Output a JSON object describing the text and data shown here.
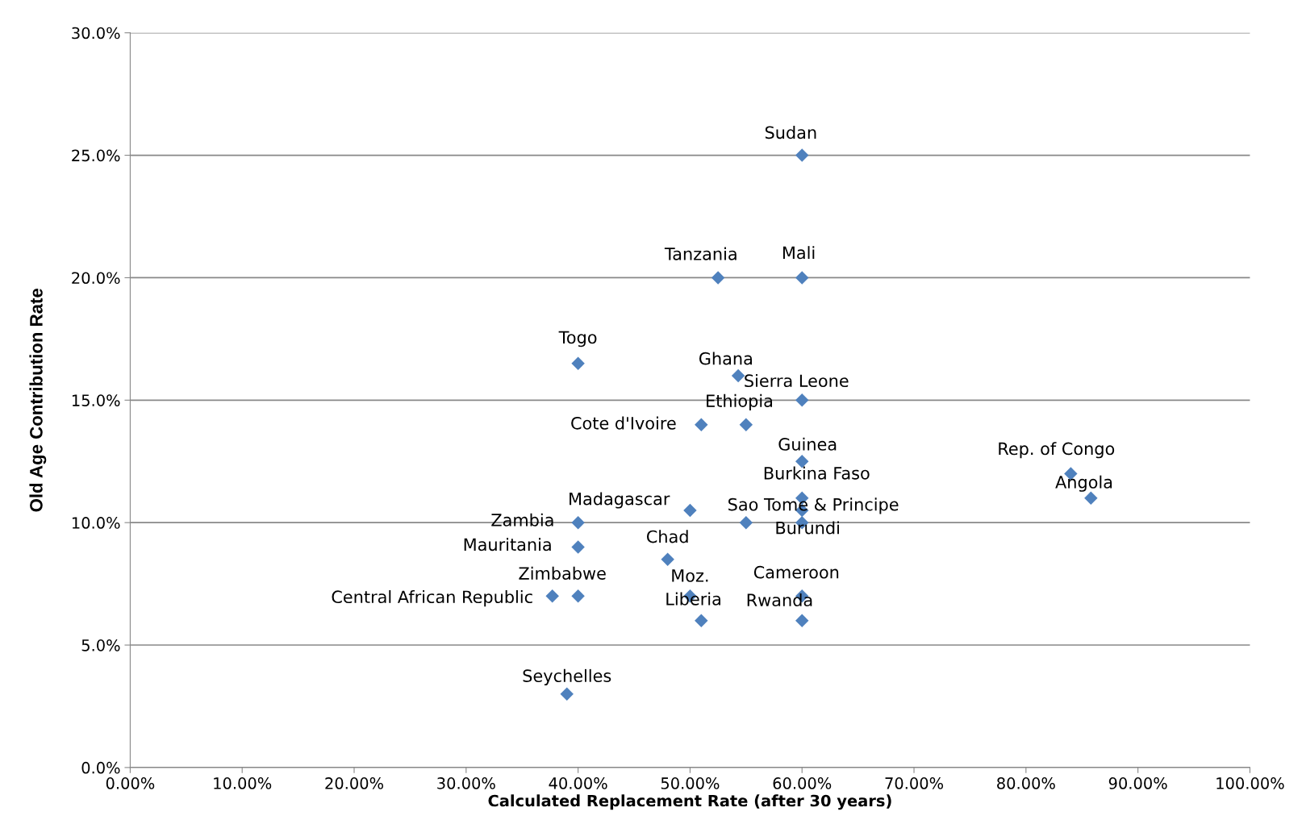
{
  "chart_data": {
    "type": "scatter",
    "xlabel": "Calculated Replacement Rate (after 30 years)",
    "ylabel": "Old Age Contribution Rate",
    "x": [
      60,
      52.5,
      60,
      40,
      54.3,
      60,
      51,
      55,
      60,
      84,
      85.8,
      60,
      60,
      50,
      60,
      40,
      40,
      48,
      40,
      37.7,
      50,
      51,
      60,
      60,
      39,
      55
    ],
    "series": [
      {
        "color": "#4f81bd",
        "values": [
          25,
          20,
          20,
          16.5,
          16,
          15,
          14,
          14,
          12.5,
          12,
          11,
          11,
          10.5,
          10.5,
          10,
          10,
          9,
          8.5,
          7,
          7,
          7,
          6,
          7,
          6,
          3,
          10
        ]
      }
    ],
    "marker": "diamond",
    "grid": "y",
    "xlim": [
      0,
      100
    ],
    "ylim": [
      0,
      30
    ],
    "xticks": [
      {
        "value": 0,
        "label": "0.00%"
      },
      {
        "value": 10,
        "label": "10.00%"
      },
      {
        "value": 20,
        "label": "20.00%"
      },
      {
        "value": 30,
        "label": "30.00%"
      },
      {
        "value": 40,
        "label": "40.00%"
      },
      {
        "value": 50,
        "label": "50.00%"
      },
      {
        "value": 60,
        "label": "60.00%"
      },
      {
        "value": 70,
        "label": "70.00%"
      },
      {
        "value": 80,
        "label": "80.00%"
      },
      {
        "value": 90,
        "label": "90.00%"
      },
      {
        "value": 100,
        "label": "100.00%"
      }
    ],
    "yticks": [
      {
        "value": 0,
        "label": "0.0%"
      },
      {
        "value": 5,
        "label": "5.0%"
      },
      {
        "value": 10,
        "label": "10.0%"
      },
      {
        "value": 15,
        "label": "15.0%"
      },
      {
        "value": 20,
        "label": "20.0%"
      },
      {
        "value": 25,
        "label": "25.0%"
      },
      {
        "value": 30,
        "label": "30.0%"
      }
    ],
    "annotations": [
      {
        "text": "Sudan",
        "x": 60,
        "y": 25
      },
      {
        "text": "Tanzania",
        "x": 52.5,
        "y": 20
      },
      {
        "text": "Mali",
        "x": 60,
        "y": 20
      },
      {
        "text": "Togo",
        "x": 40,
        "y": 16.5
      },
      {
        "text": "Ghana",
        "x": 54.3,
        "y": 16
      },
      {
        "text": "Sierra Leone",
        "x": 60,
        "y": 15
      },
      {
        "text": "Cote d'Ivoire",
        "x": 51,
        "y": 14
      },
      {
        "text": "Ethiopia",
        "x": 55,
        "y": 14
      },
      {
        "text": "Guinea",
        "x": 60,
        "y": 12.5
      },
      {
        "text": "Rep. of Congo",
        "x": 84,
        "y": 12
      },
      {
        "text": "Angola",
        "x": 85.8,
        "y": 11
      },
      {
        "text": "Burkina Faso",
        "x": 60,
        "y": 11
      },
      {
        "text": "Sao Tome & Principe",
        "x": 60,
        "y": 10.5
      },
      {
        "text": "Madagascar",
        "x": 50,
        "y": 10.5
      },
      {
        "text": "Burundi",
        "x": 60,
        "y": 10
      },
      {
        "text": "Zambia",
        "x": 40,
        "y": 10
      },
      {
        "text": "Mauritania",
        "x": 40,
        "y": 9
      },
      {
        "text": "Chad",
        "x": 48,
        "y": 8.5
      },
      {
        "text": "Zimbabwe",
        "x": 40,
        "y": 7
      },
      {
        "text": "Central African Republic",
        "x": 37.7,
        "y": 7
      },
      {
        "text": "Moz.",
        "x": 50,
        "y": 7
      },
      {
        "text": "Liberia",
        "x": 51,
        "y": 6
      },
      {
        "text": "Cameroon",
        "x": 60,
        "y": 7
      },
      {
        "text": "Rwanda",
        "x": 60,
        "y": 6
      },
      {
        "text": "Seychelles",
        "x": 39,
        "y": 3
      }
    ]
  }
}
